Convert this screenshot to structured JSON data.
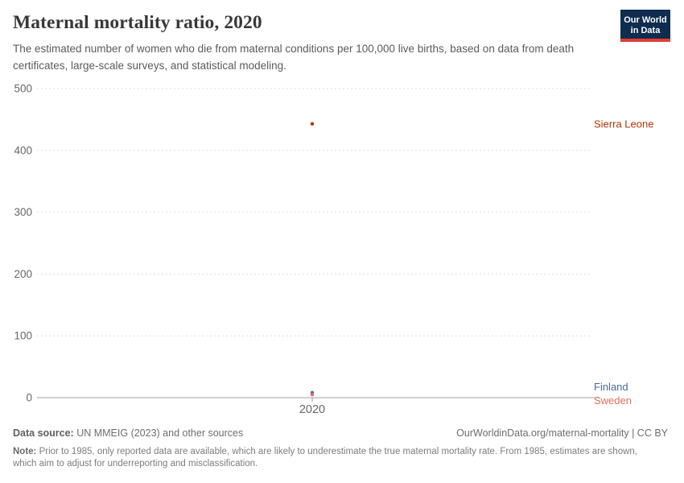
{
  "header": {
    "title": "Maternal mortality ratio, 2020",
    "subtitle": "The estimated number of women who die from maternal conditions per 100,000 live births, based on data from death certificates, large-scale surveys, and statistical modeling.",
    "logo": {
      "line1": "Our World",
      "line2": "in Data",
      "bg_color": "#0f2d4e",
      "accent_color": "#e13d33"
    }
  },
  "chart_data": {
    "type": "scatter",
    "title": "Maternal mortality ratio, 2020",
    "xlabel": "",
    "ylabel": "",
    "x": [
      2020
    ],
    "xtick_labels": [
      "2020"
    ],
    "ylim": [
      0,
      500
    ],
    "yticks": [
      0,
      100,
      200,
      300,
      400,
      500
    ],
    "grid": "horizontal-dashed",
    "legend_position": "labels-right-of-points",
    "series": [
      {
        "name": "Sierra Leone",
        "year": 2020,
        "value": 443,
        "color": "#b13507"
      },
      {
        "name": "Finland",
        "year": 2020,
        "value": 8,
        "color": "#4c6a9c"
      },
      {
        "name": "Sweden",
        "year": 2020,
        "value": 5,
        "color": "#e56e5a"
      }
    ],
    "axis_colors": {
      "tick_label": "#666666",
      "gridline": "#dedede",
      "zero_line": "#a1a1a1",
      "tick_mark": "#999999"
    }
  },
  "footer": {
    "datasource_label": "Data source:",
    "datasource_text": " UN MMEIG (2023) and other sources",
    "link": "OurWorldinData.org/maternal-mortality | CC BY",
    "note_label": "Note:",
    "note_text": " Prior to 1985, only reported data are available, which are likely to underestimate the true maternal mortality rate. From 1985, estimates are shown, which aim to adjust for underreporting and misclassification."
  }
}
